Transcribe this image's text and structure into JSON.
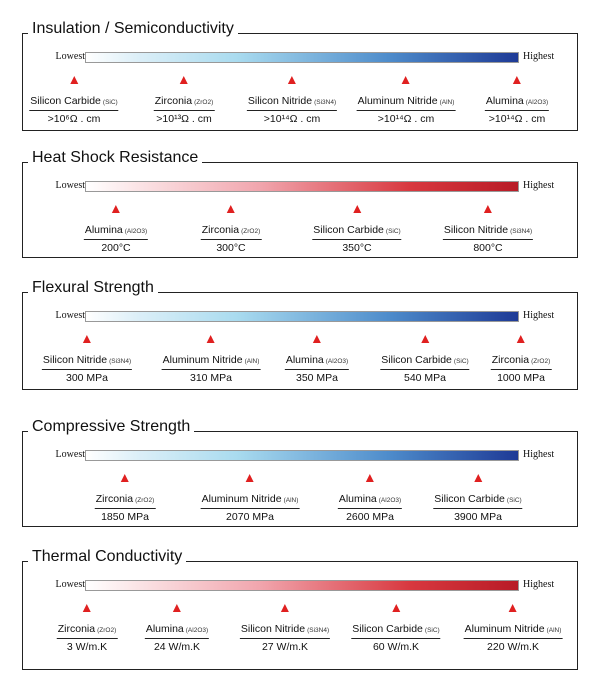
{
  "scale": {
    "low": "Lowest",
    "high": "Highest"
  },
  "panels": [
    {
      "title": "Insulation / Semiconductivity",
      "gradient": "blue",
      "items": [
        {
          "name": "Silicon Carbide",
          "formula": "(SiC)",
          "value": ">10⁶Ω . cm"
        },
        {
          "name": "Zirconia",
          "formula": "(ZrO2)",
          "value": ">10¹³Ω . cm"
        },
        {
          "name": "Silicon Nitride",
          "formula": "(Si3N4)",
          "value": ">10¹⁴Ω . cm"
        },
        {
          "name": "Aluminum Nitride",
          "formula": "(AlN)",
          "value": ">10¹⁴Ω . cm"
        },
        {
          "name": "Alumina",
          "formula": "(Al2O3)",
          "value": ">10¹⁴Ω . cm"
        }
      ]
    },
    {
      "title": "Heat Shock Resistance",
      "gradient": "red",
      "items": [
        {
          "name": "Alumina",
          "formula": "(Al2O3)",
          "value": "200°C"
        },
        {
          "name": "Zirconia",
          "formula": "(ZrO2)",
          "value": "300°C"
        },
        {
          "name": "Silicon Carbide",
          "formula": "(SiC)",
          "value": "350°C"
        },
        {
          "name": "Silicon Nitride",
          "formula": "(Si3N4)",
          "value": "800°C"
        }
      ]
    },
    {
      "title": "Flexural Strength",
      "gradient": "blue",
      "items": [
        {
          "name": "Silicon Nitride",
          "formula": "(Si3N4)",
          "value": "300 MPa"
        },
        {
          "name": "Aluminum Nitride",
          "formula": "(AlN)",
          "value": "310 MPa"
        },
        {
          "name": "Alumina",
          "formula": "(Al2O3)",
          "value": "350 MPa"
        },
        {
          "name": "Silicon Carbide",
          "formula": "(SiC)",
          "value": "540 MPa"
        },
        {
          "name": "Zirconia",
          "formula": "(ZrO2)",
          "value": "1000 MPa"
        }
      ]
    },
    {
      "title": "Compressive Strength",
      "gradient": "blue",
      "items": [
        {
          "name": "Zirconia",
          "formula": "(ZrO2)",
          "value": "1850 MPa"
        },
        {
          "name": "Aluminum Nitride",
          "formula": "(AlN)",
          "value": "2070 MPa"
        },
        {
          "name": "Alumina",
          "formula": "(Al2O3)",
          "value": "2600 MPa"
        },
        {
          "name": "Silicon Carbide",
          "formula": "(SiC)",
          "value": "3900 MPa"
        }
      ]
    },
    {
      "title": "Thermal Conductivity",
      "gradient": "red",
      "items": [
        {
          "name": "Zirconia",
          "formula": "(ZrO2)",
          "value": "3 W/m.K"
        },
        {
          "name": "Alumina",
          "formula": "(Al2O3)",
          "value": "24 W/m.K"
        },
        {
          "name": "Silicon Nitride",
          "formula": "(Si3N4)",
          "value": "27 W/m.K"
        },
        {
          "name": "Silicon Carbide",
          "formula": "(SiC)",
          "value": "60 W/m.K"
        },
        {
          "name": "Aluminum Nitride",
          "formula": "(AlN)",
          "value": "220 W/m.K"
        }
      ]
    }
  ]
}
